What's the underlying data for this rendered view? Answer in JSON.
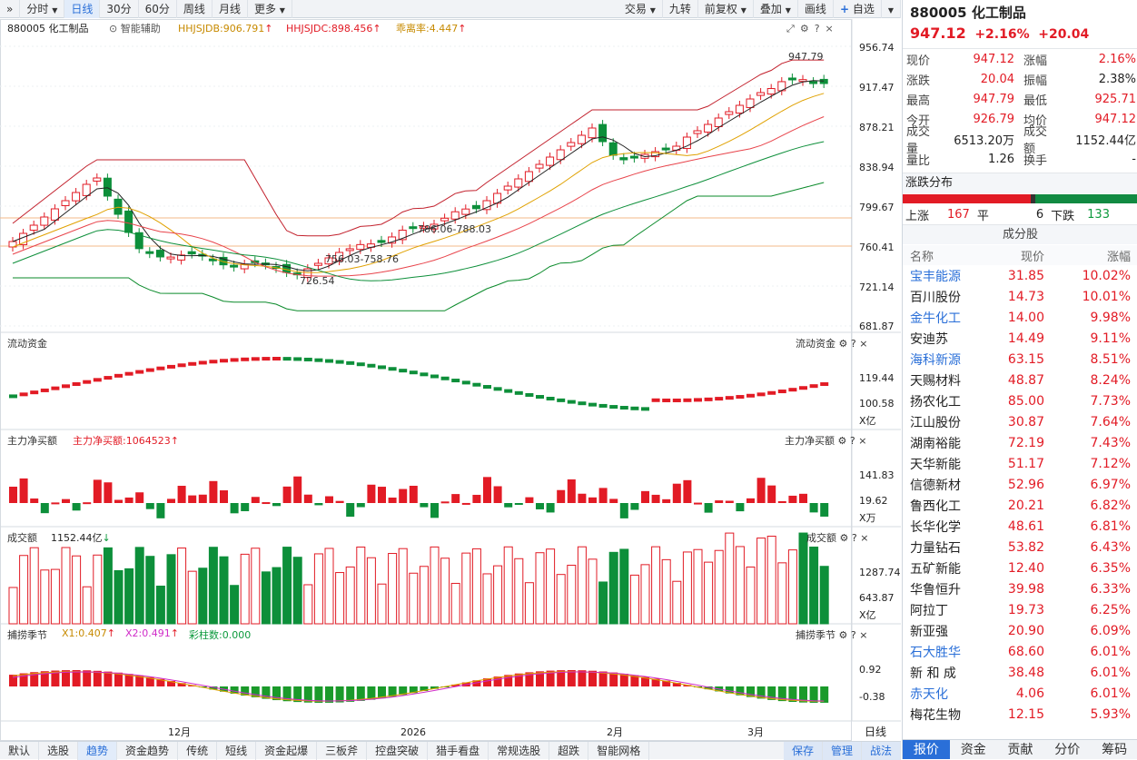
{
  "toolbar": {
    "expand_icon": "double-chevron-right-icon",
    "periods": [
      "分时",
      "日线",
      "30分",
      "60分",
      "周线",
      "月线"
    ],
    "active_period": "日线",
    "more_label": "更多",
    "right_items": [
      "交易",
      "九转",
      "前复权",
      "叠加",
      "画线"
    ],
    "add_label": "自选"
  },
  "chart_header": {
    "code_name": "880005 化工制品",
    "assist_label": "智能辅助",
    "ind1": "HHJSJDB:906.791",
    "ind2": "HHJSJDC:898.456",
    "ind3": "乖离率:4.447",
    "price_axis": [
      "956.74",
      "917.47",
      "878.21",
      "838.94",
      "799.67",
      "760.41",
      "721.14",
      "681.87"
    ],
    "annotations": {
      "high_label": "947.79",
      "low_label": "726.54",
      "band1": "786.06-788.03",
      "band2": "756.03-758.76"
    }
  },
  "panels": {
    "flow": {
      "title": "流动资金",
      "title_right": "流动资金",
      "axis": [
        "119.44",
        "100.58"
      ],
      "unit": "X亿"
    },
    "main_net": {
      "title": "主力净买额",
      "value": "主力净买额:1064523",
      "title_right": "主力净买额",
      "axis": [
        "141.83",
        "19.62"
      ],
      "unit": "X万"
    },
    "volume": {
      "title": "成交额",
      "value": "1152.44亿",
      "title_right": "成交额",
      "axis": [
        "1287.74",
        "643.87"
      ],
      "unit": "X亿"
    },
    "season": {
      "title": "捕捞季节",
      "x1": "X1:0.407",
      "x2": "X2:0.491",
      "bars": "彩柱数:0.000",
      "title_right": "捕捞季节",
      "axis": [
        "0.92",
        "-0.38"
      ]
    }
  },
  "x_axis": [
    "12月",
    "2026",
    "2月",
    "3月"
  ],
  "x_axis_right": "日线",
  "bottom_tabs": [
    "默认",
    "选股",
    "趋势",
    "资金趋势",
    "传统",
    "短线",
    "资金起爆",
    "三板斧",
    "控盘突破",
    "猎手看盘",
    "常规选股",
    "超跌",
    "智能网格"
  ],
  "bottom_active": "趋势",
  "bottom_right": [
    "保存",
    "管理",
    "战法"
  ],
  "right": {
    "title": "880005 化工制品",
    "price": "947.12",
    "change_pct": "+2.16%",
    "change": "+20.04",
    "quote": [
      {
        "l1": "现价",
        "v1": "947.12",
        "c1": "red",
        "l2": "涨幅",
        "v2": "2.16%",
        "c2": "red"
      },
      {
        "l1": "涨跌",
        "v1": "20.04",
        "c1": "red",
        "l2": "振幅",
        "v2": "2.38%",
        "c2": "blk"
      },
      {
        "l1": "最高",
        "v1": "947.79",
        "c1": "red",
        "l2": "最低",
        "v2": "925.71",
        "c2": "red"
      },
      {
        "l1": "今开",
        "v1": "926.79",
        "c1": "red",
        "l2": "均价",
        "v2": "947.12",
        "c2": "red"
      },
      {
        "l1": "成交量",
        "v1": "6513.20万",
        "c1": "blk",
        "l2": "成交额",
        "v2": "1152.44亿",
        "c2": "blk"
      },
      {
        "l1": "量比",
        "v1": "1.26",
        "c1": "blk",
        "l2": "换手",
        "v2": "-",
        "c2": "blk"
      }
    ],
    "dist_title": "涨跌分布",
    "dist": {
      "up_label": "上涨",
      "up": "167",
      "flat_label": "平",
      "flat": "6",
      "down_label": "下跌",
      "down": "133"
    },
    "components_title": "成分股",
    "cols": [
      "名称",
      "现价",
      "涨幅"
    ],
    "stocks": [
      {
        "n": "宝丰能源",
        "p": "31.85",
        "c": "10.02%",
        "link": true
      },
      {
        "n": "百川股份",
        "p": "14.73",
        "c": "10.01%",
        "link": false
      },
      {
        "n": "金牛化工",
        "p": "14.00",
        "c": "9.98%",
        "link": true
      },
      {
        "n": "安迪苏",
        "p": "14.49",
        "c": "9.11%",
        "link": false
      },
      {
        "n": "海科新源",
        "p": "63.15",
        "c": "8.51%",
        "link": true
      },
      {
        "n": "天赐材料",
        "p": "48.87",
        "c": "8.24%",
        "link": false
      },
      {
        "n": "扬农化工",
        "p": "85.00",
        "c": "7.73%",
        "link": false
      },
      {
        "n": "江山股份",
        "p": "30.87",
        "c": "7.64%",
        "link": false
      },
      {
        "n": "湖南裕能",
        "p": "72.19",
        "c": "7.43%",
        "link": false
      },
      {
        "n": "天华新能",
        "p": "51.17",
        "c": "7.12%",
        "link": false
      },
      {
        "n": "信德新材",
        "p": "52.96",
        "c": "6.97%",
        "link": false
      },
      {
        "n": "鲁西化工",
        "p": "20.21",
        "c": "6.82%",
        "link": false
      },
      {
        "n": "长华化学",
        "p": "48.61",
        "c": "6.81%",
        "link": false
      },
      {
        "n": "力量钻石",
        "p": "53.82",
        "c": "6.43%",
        "link": false
      },
      {
        "n": "五矿新能",
        "p": "12.40",
        "c": "6.35%",
        "link": false
      },
      {
        "n": "华鲁恒升",
        "p": "39.98",
        "c": "6.33%",
        "link": false
      },
      {
        "n": "阿拉丁",
        "p": "19.73",
        "c": "6.25%",
        "link": false
      },
      {
        "n": "新亚强",
        "p": "20.90",
        "c": "6.09%",
        "link": false
      },
      {
        "n": "石大胜华",
        "p": "68.60",
        "c": "6.01%",
        "link": true
      },
      {
        "n": "新 和 成",
        "p": "38.48",
        "c": "6.01%",
        "link": false
      },
      {
        "n": "赤天化",
        "p": "4.06",
        "c": "6.01%",
        "link": true
      },
      {
        "n": "梅花生物",
        "p": "12.15",
        "c": "5.93%",
        "link": false
      }
    ],
    "tabs": [
      "报价",
      "资金",
      "贡献",
      "分价",
      "筹码"
    ],
    "active_tab": "报价"
  },
  "colors": {
    "up": "#e21b25",
    "down": "#0d8f3a",
    "accent": "#2a6fd8"
  }
}
